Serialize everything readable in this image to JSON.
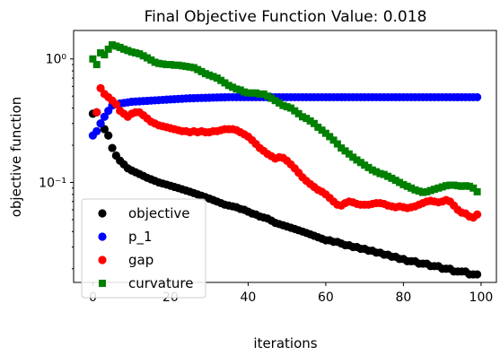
{
  "chart_data": {
    "type": "scatter",
    "title": "Final Objective Function Value: 0.018",
    "xlabel": "iterations",
    "ylabel": "objective function",
    "xscale": "linear",
    "yscale": "log",
    "xlim": [
      -4.95,
      103.95
    ],
    "ylim": [
      0.0155,
      1.7
    ],
    "xticks": [
      0,
      20,
      40,
      60,
      80,
      100
    ],
    "xtick_labels": [
      "0",
      "20",
      "40",
      "60",
      "80",
      "100"
    ],
    "yticks": [
      0.1,
      1
    ],
    "ytick_labels": [
      "10⁻¹",
      "10⁰"
    ],
    "legend_position": "lower-left",
    "grid": false,
    "series": [
      {
        "name": "objective",
        "marker": "circle",
        "color": "#000000",
        "x": [
          0,
          1,
          2,
          3,
          4,
          5,
          6,
          7,
          8,
          9,
          10,
          11,
          12,
          13,
          14,
          15,
          16,
          17,
          18,
          19,
          20,
          21,
          22,
          23,
          24,
          25,
          26,
          27,
          28,
          29,
          30,
          31,
          32,
          33,
          34,
          35,
          36,
          37,
          38,
          39,
          40,
          41,
          42,
          43,
          44,
          45,
          46,
          47,
          48,
          49,
          50,
          51,
          52,
          53,
          54,
          55,
          56,
          57,
          58,
          59,
          60,
          61,
          62,
          63,
          64,
          65,
          66,
          67,
          68,
          69,
          70,
          71,
          72,
          73,
          74,
          75,
          76,
          77,
          78,
          79,
          80,
          81,
          82,
          83,
          84,
          85,
          86,
          87,
          88,
          89,
          90,
          91,
          92,
          93,
          94,
          95,
          96,
          97,
          98,
          99
        ],
        "y": [
          0.36,
          0.37,
          0.3,
          0.27,
          0.24,
          0.19,
          0.165,
          0.15,
          0.14,
          0.13,
          0.125,
          0.121,
          0.117,
          0.113,
          0.109,
          0.106,
          0.103,
          0.1,
          0.098,
          0.096,
          0.094,
          0.092,
          0.09,
          0.088,
          0.086,
          0.084,
          0.082,
          0.08,
          0.078,
          0.076,
          0.074,
          0.072,
          0.07,
          0.068,
          0.066,
          0.065,
          0.064,
          0.063,
          0.061,
          0.06,
          0.058,
          0.056,
          0.055,
          0.053,
          0.052,
          0.051,
          0.049,
          0.047,
          0.046,
          0.045,
          0.044,
          0.043,
          0.042,
          0.041,
          0.04,
          0.039,
          0.038,
          0.037,
          0.036,
          0.035,
          0.034,
          0.034,
          0.033,
          0.033,
          0.032,
          0.031,
          0.031,
          0.03,
          0.03,
          0.029,
          0.029,
          0.028,
          0.028,
          0.027,
          0.027,
          0.026,
          0.026,
          0.025,
          0.025,
          0.024,
          0.024,
          0.023,
          0.023,
          0.023,
          0.022,
          0.022,
          0.022,
          0.021,
          0.021,
          0.021,
          0.02,
          0.02,
          0.02,
          0.019,
          0.019,
          0.019,
          0.019,
          0.018,
          0.018,
          0.018
        ]
      },
      {
        "name": "p_1",
        "marker": "circle",
        "color": "#0000ff",
        "x": [
          0,
          1,
          2,
          3,
          4,
          5,
          6,
          7,
          8,
          9,
          10,
          11,
          12,
          13,
          14,
          15,
          16,
          17,
          18,
          19,
          20,
          21,
          22,
          23,
          24,
          25,
          26,
          27,
          28,
          29,
          30,
          31,
          32,
          33,
          34,
          35,
          36,
          37,
          38,
          39,
          40,
          41,
          42,
          43,
          44,
          45,
          46,
          47,
          48,
          49,
          50,
          51,
          52,
          53,
          54,
          55,
          56,
          57,
          58,
          59,
          60,
          61,
          62,
          63,
          64,
          65,
          66,
          67,
          68,
          69,
          70,
          71,
          72,
          73,
          74,
          75,
          76,
          77,
          78,
          79,
          80,
          81,
          82,
          83,
          84,
          85,
          86,
          87,
          88,
          89,
          90,
          91,
          92,
          93,
          94,
          95,
          96,
          97,
          98,
          99
        ],
        "y": [
          0.24,
          0.26,
          0.3,
          0.34,
          0.38,
          0.42,
          0.43,
          0.435,
          0.44,
          0.445,
          0.45,
          0.452,
          0.454,
          0.456,
          0.458,
          0.46,
          0.462,
          0.464,
          0.466,
          0.468,
          0.47,
          0.472,
          0.474,
          0.476,
          0.478,
          0.48,
          0.481,
          0.482,
          0.483,
          0.484,
          0.485,
          0.486,
          0.487,
          0.488,
          0.489,
          0.49,
          0.49,
          0.49,
          0.49,
          0.49,
          0.49,
          0.49,
          0.49,
          0.49,
          0.49,
          0.49,
          0.49,
          0.49,
          0.49,
          0.49,
          0.49,
          0.49,
          0.49,
          0.49,
          0.49,
          0.49,
          0.49,
          0.49,
          0.49,
          0.49,
          0.49,
          0.49,
          0.49,
          0.49,
          0.49,
          0.49,
          0.49,
          0.49,
          0.49,
          0.49,
          0.49,
          0.49,
          0.49,
          0.49,
          0.49,
          0.49,
          0.49,
          0.49,
          0.49,
          0.49,
          0.49,
          0.49,
          0.49,
          0.49,
          0.49,
          0.49,
          0.49,
          0.49,
          0.49,
          0.49,
          0.49,
          0.49,
          0.49,
          0.49,
          0.49,
          0.49,
          0.49,
          0.49,
          0.49,
          0.49
        ]
      },
      {
        "name": "gap",
        "marker": "circle",
        "color": "#ff0000",
        "x": [
          1,
          2,
          3,
          4,
          5,
          6,
          7,
          8,
          9,
          10,
          11,
          12,
          13,
          14,
          15,
          16,
          17,
          18,
          19,
          20,
          21,
          22,
          23,
          24,
          25,
          26,
          27,
          28,
          29,
          30,
          31,
          32,
          33,
          34,
          35,
          36,
          37,
          38,
          39,
          40,
          41,
          42,
          43,
          44,
          45,
          46,
          47,
          48,
          49,
          50,
          51,
          52,
          53,
          54,
          55,
          56,
          57,
          58,
          59,
          60,
          61,
          62,
          63,
          64,
          65,
          66,
          67,
          68,
          69,
          70,
          71,
          72,
          73,
          74,
          75,
          76,
          77,
          78,
          79,
          80,
          81,
          82,
          83,
          84,
          85,
          86,
          87,
          88,
          89,
          90,
          91,
          92,
          93,
          94,
          95,
          96,
          97,
          98,
          99
        ],
        "y": [
          0.37,
          0.58,
          0.52,
          0.49,
          0.46,
          0.43,
          0.38,
          0.36,
          0.34,
          0.36,
          0.37,
          0.37,
          0.35,
          0.33,
          0.31,
          0.3,
          0.29,
          0.285,
          0.28,
          0.275,
          0.27,
          0.265,
          0.26,
          0.26,
          0.255,
          0.26,
          0.255,
          0.26,
          0.255,
          0.255,
          0.26,
          0.26,
          0.265,
          0.27,
          0.27,
          0.27,
          0.265,
          0.255,
          0.245,
          0.235,
          0.22,
          0.205,
          0.19,
          0.18,
          0.17,
          0.163,
          0.156,
          0.16,
          0.158,
          0.15,
          0.14,
          0.13,
          0.12,
          0.11,
          0.103,
          0.097,
          0.092,
          0.087,
          0.084,
          0.08,
          0.075,
          0.07,
          0.066,
          0.065,
          0.068,
          0.07,
          0.069,
          0.067,
          0.066,
          0.066,
          0.066,
          0.067,
          0.068,
          0.068,
          0.067,
          0.065,
          0.064,
          0.063,
          0.064,
          0.063,
          0.062,
          0.063,
          0.064,
          0.066,
          0.068,
          0.07,
          0.071,
          0.07,
          0.069,
          0.07,
          0.072,
          0.07,
          0.065,
          0.06,
          0.057,
          0.056,
          0.053,
          0.052,
          0.055
        ]
      },
      {
        "name": "curvature",
        "marker": "square",
        "color": "#008000",
        "x": [
          0,
          1,
          2,
          3,
          4,
          5,
          6,
          7,
          8,
          9,
          10,
          11,
          12,
          13,
          14,
          15,
          16,
          17,
          18,
          19,
          20,
          21,
          22,
          23,
          24,
          25,
          26,
          27,
          28,
          29,
          30,
          31,
          32,
          33,
          34,
          35,
          36,
          37,
          38,
          39,
          40,
          41,
          42,
          43,
          44,
          45,
          46,
          47,
          48,
          49,
          50,
          51,
          52,
          53,
          54,
          55,
          56,
          57,
          58,
          59,
          60,
          61,
          62,
          63,
          64,
          65,
          66,
          67,
          68,
          69,
          70,
          71,
          72,
          73,
          74,
          75,
          76,
          77,
          78,
          79,
          80,
          81,
          82,
          83,
          84,
          85,
          86,
          87,
          88,
          89,
          90,
          91,
          92,
          93,
          94,
          95,
          96,
          97,
          98,
          99
        ],
        "y": [
          1.0,
          0.9,
          1.12,
          1.08,
          1.2,
          1.3,
          1.27,
          1.24,
          1.2,
          1.17,
          1.14,
          1.12,
          1.1,
          1.06,
          1.02,
          0.98,
          0.94,
          0.92,
          0.91,
          0.9,
          0.9,
          0.89,
          0.89,
          0.88,
          0.87,
          0.86,
          0.85,
          0.82,
          0.79,
          0.76,
          0.74,
          0.72,
          0.7,
          0.67,
          0.64,
          0.61,
          0.59,
          0.57,
          0.56,
          0.54,
          0.53,
          0.53,
          0.53,
          0.52,
          0.52,
          0.5,
          0.48,
          0.46,
          0.44,
          0.42,
          0.41,
          0.4,
          0.38,
          0.36,
          0.34,
          0.33,
          0.315,
          0.3,
          0.28,
          0.265,
          0.25,
          0.235,
          0.22,
          0.205,
          0.19,
          0.18,
          0.17,
          0.16,
          0.152,
          0.145,
          0.138,
          0.132,
          0.126,
          0.122,
          0.118,
          0.116,
          0.112,
          0.108,
          0.104,
          0.1,
          0.096,
          0.093,
          0.09,
          0.087,
          0.085,
          0.083,
          0.084,
          0.086,
          0.088,
          0.09,
          0.092,
          0.094,
          0.095,
          0.095,
          0.094,
          0.093,
          0.094,
          0.093,
          0.09,
          0.084
        ]
      }
    ]
  }
}
